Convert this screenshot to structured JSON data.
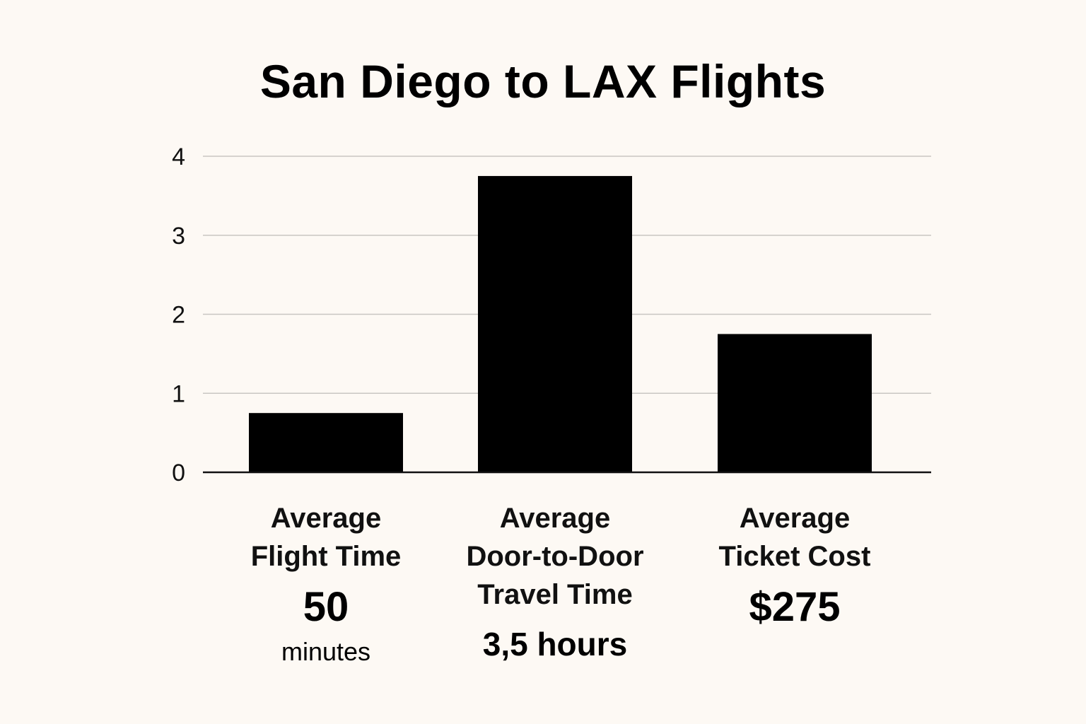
{
  "chart_data": {
    "type": "bar",
    "title": "San Diego to LAX Flights",
    "xlabel": "",
    "ylabel": "",
    "ylim": [
      0,
      4
    ],
    "yticks": [
      "0",
      "1",
      "2",
      "3",
      "4"
    ],
    "grid": true,
    "categories": [
      [
        "Average",
        "Flight Time"
      ],
      [
        "Average",
        "Door-to-Door",
        "Travel Time"
      ],
      [
        "Average",
        "Ticket Cost"
      ]
    ],
    "values": [
      0.75,
      3.75,
      1.75
    ],
    "value_labels": [
      {
        "main": "50",
        "sub": "minutes"
      },
      {
        "main": "3,5 hours",
        "sub": ""
      },
      {
        "main": "$275",
        "sub": ""
      }
    ],
    "colors": {
      "bar": "#000000",
      "grid": "#c9c6c2",
      "axis": "#111111",
      "background": "#fdf9f4"
    }
  }
}
